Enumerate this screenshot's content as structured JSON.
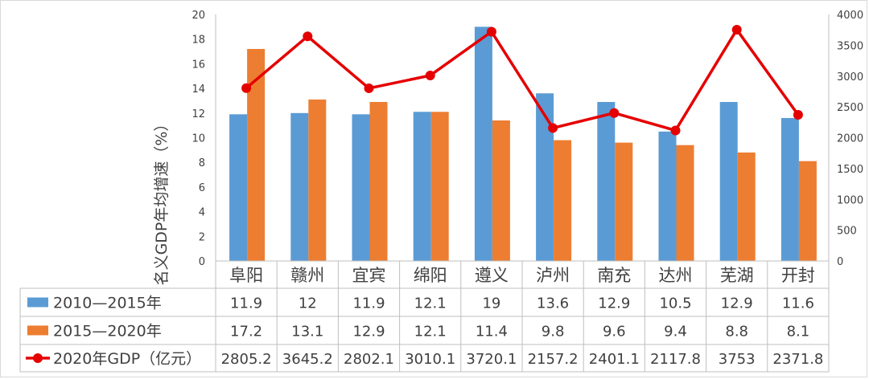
{
  "chart_data": {
    "type": "bar",
    "categories": [
      "阜阳",
      "赣州",
      "宜宾",
      "绵阳",
      "遵义",
      "泸州",
      "南充",
      "达州",
      "芜湖",
      "开封"
    ],
    "series": [
      {
        "name": "2010—2015年",
        "type": "bar",
        "axis": "left",
        "values": [
          11.9,
          12,
          11.9,
          12.1,
          19,
          13.6,
          12.9,
          10.5,
          12.9,
          11.6
        ],
        "labels": [
          "11.9",
          "12",
          "11.9",
          "12.1",
          "19",
          "13.6",
          "12.9",
          "10.5",
          "12.9",
          "11.6"
        ]
      },
      {
        "name": "2015—2020年",
        "type": "bar",
        "axis": "left",
        "values": [
          17.2,
          13.1,
          12.9,
          12.1,
          11.4,
          9.8,
          9.6,
          9.4,
          8.8,
          8.1
        ],
        "labels": [
          "17.2",
          "13.1",
          "12.9",
          "12.1",
          "11.4",
          "9.8",
          "9.6",
          "9.4",
          "8.8",
          "8.1"
        ]
      },
      {
        "name": "2020年GDP（亿元）",
        "type": "line",
        "axis": "right",
        "values": [
          2805.2,
          3645.2,
          2802.1,
          3010.1,
          3720.1,
          2157.2,
          2401.1,
          2117.8,
          3753,
          2371.8
        ],
        "labels": [
          "2805.2",
          "3645.2",
          "2802.1",
          "3010.1",
          "3720.1",
          "2157.2",
          "2401.1",
          "2117.8",
          "3753",
          "2371.8"
        ]
      }
    ],
    "title": "",
    "xlabel": "",
    "ylabel": "名义GDP年均增速（%）",
    "y2label": "",
    "ylim": [
      0,
      20
    ],
    "yticks": [
      "0",
      "2",
      "4",
      "6",
      "8",
      "10",
      "12",
      "14",
      "16",
      "18",
      "20"
    ],
    "y2lim": [
      0,
      4000
    ],
    "y2ticks": [
      "0",
      "500",
      "1000",
      "1500",
      "2000",
      "2500",
      "3000",
      "3500",
      "4000"
    ],
    "grid": false,
    "legend": "data-table",
    "colors": {
      "bar1": "#5b9bd5",
      "bar2": "#ed7d31",
      "line": "#e50000",
      "axis": "#bfbfbf",
      "text": "#404040"
    }
  }
}
